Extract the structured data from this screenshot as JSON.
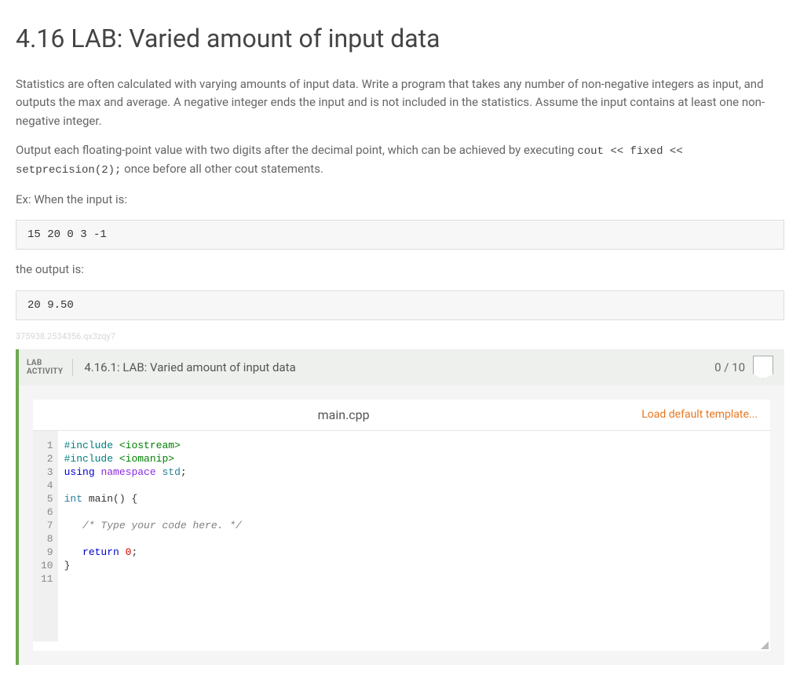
{
  "page": {
    "title": "4.16 LAB: Varied amount of input data",
    "para1_a": "Statistics are often calculated with varying amounts of input data. Write a program that takes any number of non-negative integers as input, and outputs the max and average. A negative integer ends the input and is not included in the statistics. Assume the input contains at least one non-negative integer.",
    "para2_a": "Output each floating-point value with two digits after the decimal point, which can be achieved by executing ",
    "para2_code": "cout << fixed << setprecision(2);",
    "para2_b": " once before all other cout statements.",
    "ex_label": "Ex: When the input is:",
    "input_block": "15 20 0 3 -1",
    "output_label": "the output is:",
    "output_block": "20 9.50",
    "watermark": "375938.2534356.qx3zqy7"
  },
  "activity": {
    "label_line1": "LAB",
    "label_line2": "ACTIVITY",
    "title": "4.16.1: LAB: Varied amount of input data",
    "score": "0 / 10"
  },
  "editor": {
    "filename": "main.cpp",
    "load_default": "Load default template...",
    "line_count": 11,
    "colors": {
      "preprocessor": "#008080",
      "keyword": "#0000cc",
      "namespace_kw": "#8a2be2",
      "type": "#267f99",
      "number": "#cc0000",
      "comment": "#808080",
      "string": "#008000",
      "gutter_bg": "#f0f0f0",
      "gutter_fg": "#888888",
      "highlight_bg": "#eeeeee"
    },
    "lines": [
      {
        "n": 1,
        "tokens": [
          {
            "t": "#include",
            "c": "pp"
          },
          {
            "t": " "
          },
          {
            "t": "<iostream>",
            "c": "str"
          }
        ]
      },
      {
        "n": 2,
        "tokens": [
          {
            "t": "#include",
            "c": "pp"
          },
          {
            "t": " "
          },
          {
            "t": "<iomanip>",
            "c": "str"
          }
        ]
      },
      {
        "n": 3,
        "tokens": [
          {
            "t": "using",
            "c": "kw"
          },
          {
            "t": " "
          },
          {
            "t": "namespace",
            "c": "ns"
          },
          {
            "t": " "
          },
          {
            "t": "std",
            "c": "type"
          },
          {
            "t": ";"
          }
        ]
      },
      {
        "n": 4,
        "tokens": []
      },
      {
        "n": 5,
        "tokens": [
          {
            "t": "int",
            "c": "type"
          },
          {
            "t": " "
          },
          {
            "t": "main",
            "c": "fn"
          },
          {
            "t": "() {"
          }
        ]
      },
      {
        "n": 6,
        "tokens": []
      },
      {
        "n": 7,
        "tokens": [
          {
            "t": "   "
          },
          {
            "t": "/* Type your code here. */",
            "c": "cm"
          }
        ]
      },
      {
        "n": 8,
        "tokens": []
      },
      {
        "n": 9,
        "tokens": [
          {
            "t": "   "
          },
          {
            "t": "return",
            "c": "kw"
          },
          {
            "t": " "
          },
          {
            "t": "0",
            "c": "num"
          },
          {
            "t": ";"
          }
        ]
      },
      {
        "n": 10,
        "tokens": [
          {
            "t": "}"
          }
        ]
      },
      {
        "n": 11,
        "highlight": true,
        "tokens": []
      }
    ]
  }
}
